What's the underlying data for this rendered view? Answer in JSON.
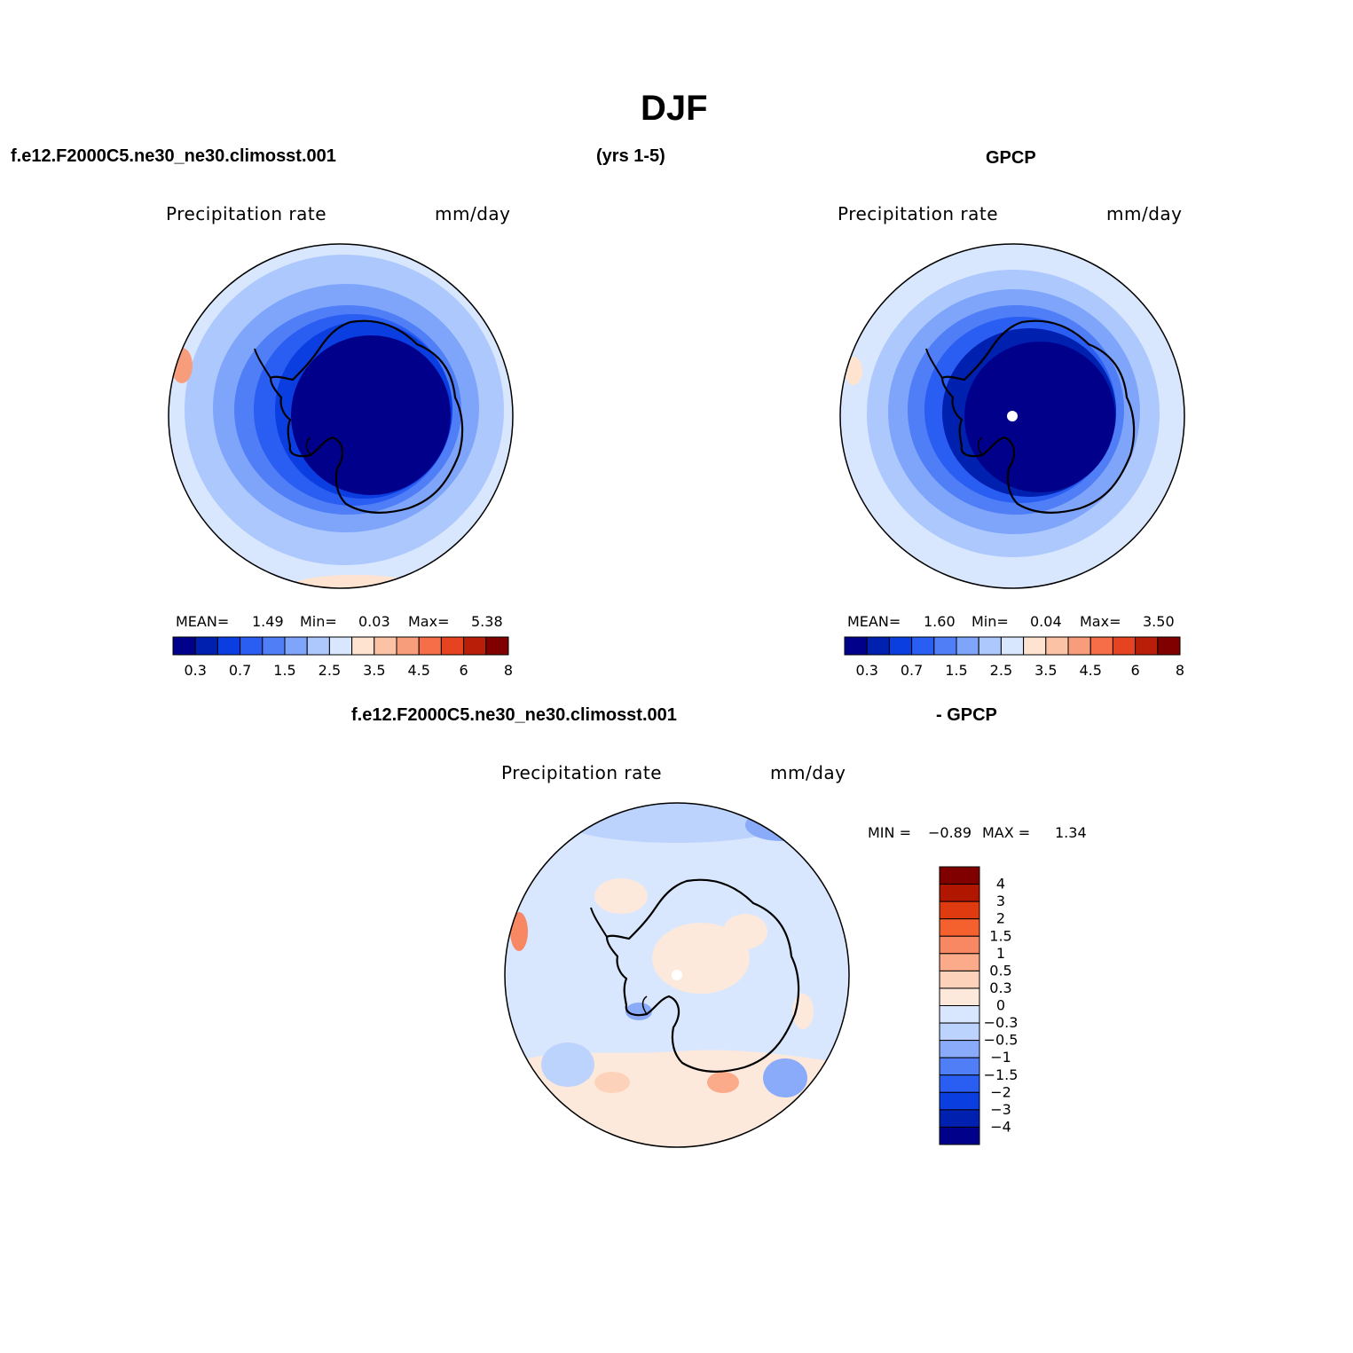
{
  "figure": {
    "title": "DJF",
    "case_name": "f.e12.F2000C5.ne30_ne30.climosst.001",
    "years": "(yrs 1-5)",
    "obs_name": "GPCP",
    "diff_case": "f.e12.F2000C5.ne30_ne30.climosst.001",
    "diff_obs": "- GPCP"
  },
  "panels": [
    {
      "id": "model",
      "variable": "Precipitation  rate",
      "units": "mm/day",
      "stats": {
        "mean_label": "MEAN=",
        "mean": "1.49",
        "min_label": "Min=",
        "min": "0.03",
        "max_label": "Max=",
        "max": "5.38"
      }
    },
    {
      "id": "obs",
      "variable": "Precipitation  rate",
      "units": "mm/day",
      "stats": {
        "mean_label": "MEAN=",
        "mean": "1.60",
        "min_label": "Min=",
        "min": "0.04",
        "max_label": "Max=",
        "max": "3.50"
      }
    },
    {
      "id": "diff",
      "variable": "Precipitation  rate",
      "units": "mm/day",
      "stats": {
        "min_label": "MIN =",
        "min": "−0.89",
        "max_label": "MAX =",
        "max": "1.34"
      }
    }
  ],
  "colorbars": {
    "abs_colors": [
      "#00008b",
      "#0020b0",
      "#0a3ee0",
      "#2a5df2",
      "#4f7ef6",
      "#7fa5fa",
      "#adc8fc",
      "#d8e7fe",
      "#fde3d0",
      "#fcc2a6",
      "#f89d7c",
      "#f56e48",
      "#e64420",
      "#b91f08",
      "#800000"
    ],
    "abs_ticks": [
      "0.3",
      "0.7",
      "1.5",
      "2.5",
      "3.5",
      "4.5",
      "6",
      "8"
    ],
    "diff_colors": [
      "#800000",
      "#b11700",
      "#e03a10",
      "#f5602f",
      "#f88864",
      "#fbaa8a",
      "#fdd2bb",
      "#fde9dc",
      "#d8e7fe",
      "#bcd3fd",
      "#8aabfa",
      "#4f7ef6",
      "#2a5df2",
      "#0a3ee0",
      "#0020b0",
      "#00008b"
    ],
    "diff_ticks": [
      "4",
      "3",
      "2",
      "1.5",
      "1",
      "0.5",
      "0.3",
      "0",
      "−0.3",
      "−0.5",
      "−1",
      "−1.5",
      "−2",
      "−3",
      "−4"
    ]
  }
}
